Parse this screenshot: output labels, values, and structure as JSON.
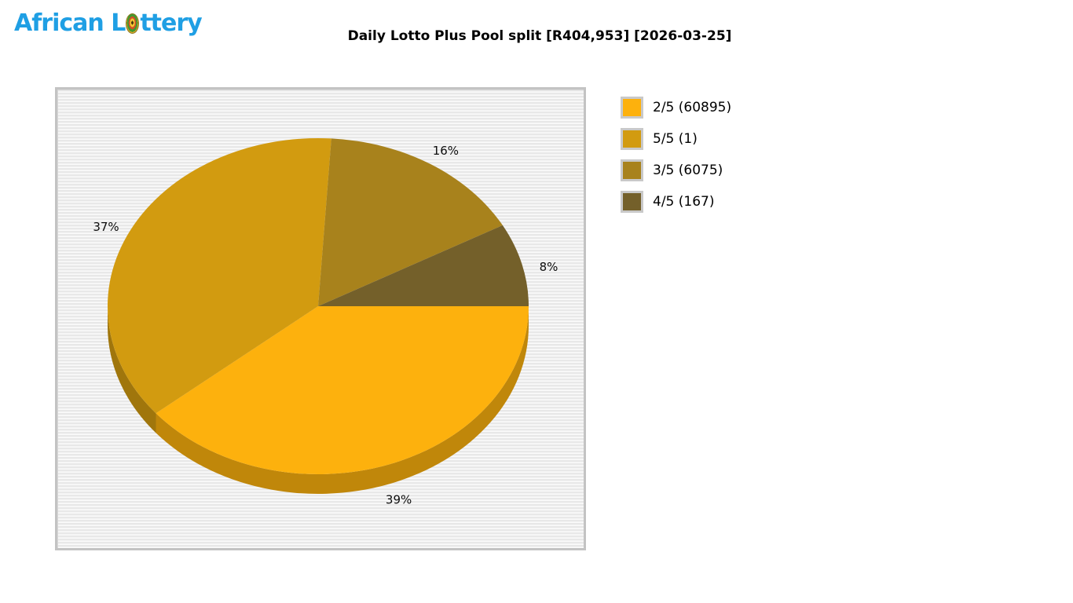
{
  "logo": {
    "part1": "African",
    "part2_before_ball": "L",
    "part2_after_ball": "ttery",
    "color": "#1f9fe4",
    "ball_icon": "lottery-ball-icon"
  },
  "chart_data": {
    "type": "pie",
    "title": "Daily Lotto Plus Pool split [R404,953] [2026-03-25]",
    "pool_total": "R404,953",
    "draw_date": "2026-03-25",
    "effect": "3d",
    "start_angle_deg": 0,
    "direction": "clockwise",
    "legend_position": "right",
    "background_style": "horizontal-stripes",
    "slices": [
      {
        "name": "2/5",
        "winners": 60895,
        "percent": 39,
        "percent_label": "39%",
        "legend_label": "2/5 (60895)",
        "color": "#FDB10D"
      },
      {
        "name": "5/5",
        "winners": 1,
        "percent": 37,
        "percent_label": "37%",
        "legend_label": "5/5 (1)",
        "color": "#D29B10"
      },
      {
        "name": "3/5",
        "winners": 6075,
        "percent": 16,
        "percent_label": "16%",
        "legend_label": "3/5 (6075)",
        "color": "#A8821C"
      },
      {
        "name": "4/5",
        "winners": 167,
        "percent": 8,
        "percent_label": "8%",
        "legend_label": "4/5 (167)",
        "color": "#74602A"
      }
    ]
  }
}
